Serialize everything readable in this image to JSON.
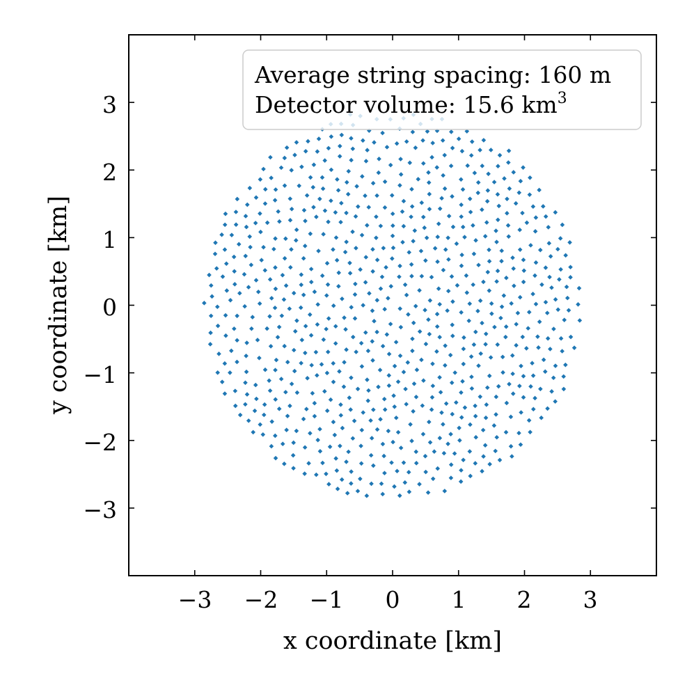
{
  "chart_data": {
    "type": "scatter",
    "title": "",
    "xlabel": "x coordinate [km]",
    "ylabel": "y coordinate [km]",
    "xlim": [
      -4,
      4
    ],
    "ylim": [
      -4,
      4
    ],
    "xticks": [
      -3,
      -2,
      -1,
      0,
      1,
      2,
      3
    ],
    "yticks": [
      -3,
      -2,
      -1,
      0,
      1,
      2,
      3
    ],
    "tick_labels": [
      "−3",
      "−2",
      "−1",
      "0",
      "1",
      "2",
      "3"
    ],
    "grid": false,
    "legend_position": "top-right",
    "annotation": {
      "line1": "Average string spacing: 160 m",
      "line2_prefix": "Detector volume: 15.6 km",
      "line2_sup": "3"
    },
    "marker_color": "#1f77b4",
    "footprint_shape": "regular-polygon",
    "footprint_sides": 14,
    "footprint_radius_km": 2.9,
    "average_spacing_km": 0.16,
    "point_count": 1000
  }
}
